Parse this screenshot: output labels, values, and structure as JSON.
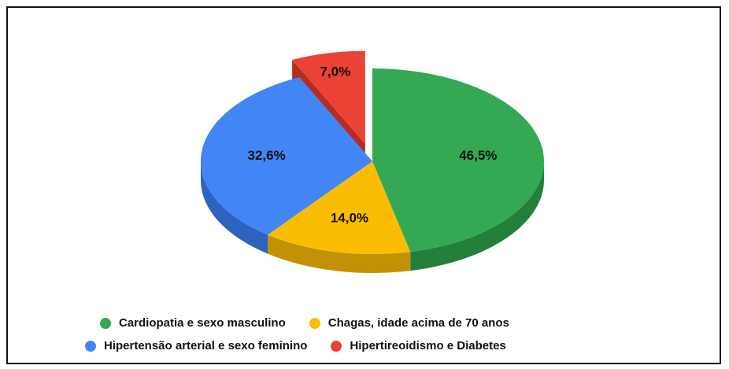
{
  "chart_data": {
    "type": "pie",
    "style": "3d-exploded",
    "slices": [
      {
        "label": "Cardiopatia e sexo masculino",
        "value": 46.5,
        "value_label": "46,5%",
        "color": "#34a853",
        "side_color": "#23803b"
      },
      {
        "label": "Chagas, idade acima de 70 anos",
        "value": 14.0,
        "value_label": "14,0%",
        "color": "#fbbc04",
        "side_color": "#c39106"
      },
      {
        "label": "Hipertensão arterial e sexo feminino",
        "value": 32.6,
        "value_label": "32,6%",
        "color": "#4285f4",
        "side_color": "#2f62bd"
      },
      {
        "label": "Hipertireoidismo e Diabetes",
        "value": 7.0,
        "value_label": "7,0%",
        "color": "#ea4335",
        "side_color": "#b32d21",
        "exploded": true
      }
    ],
    "legend_position": "bottom"
  }
}
